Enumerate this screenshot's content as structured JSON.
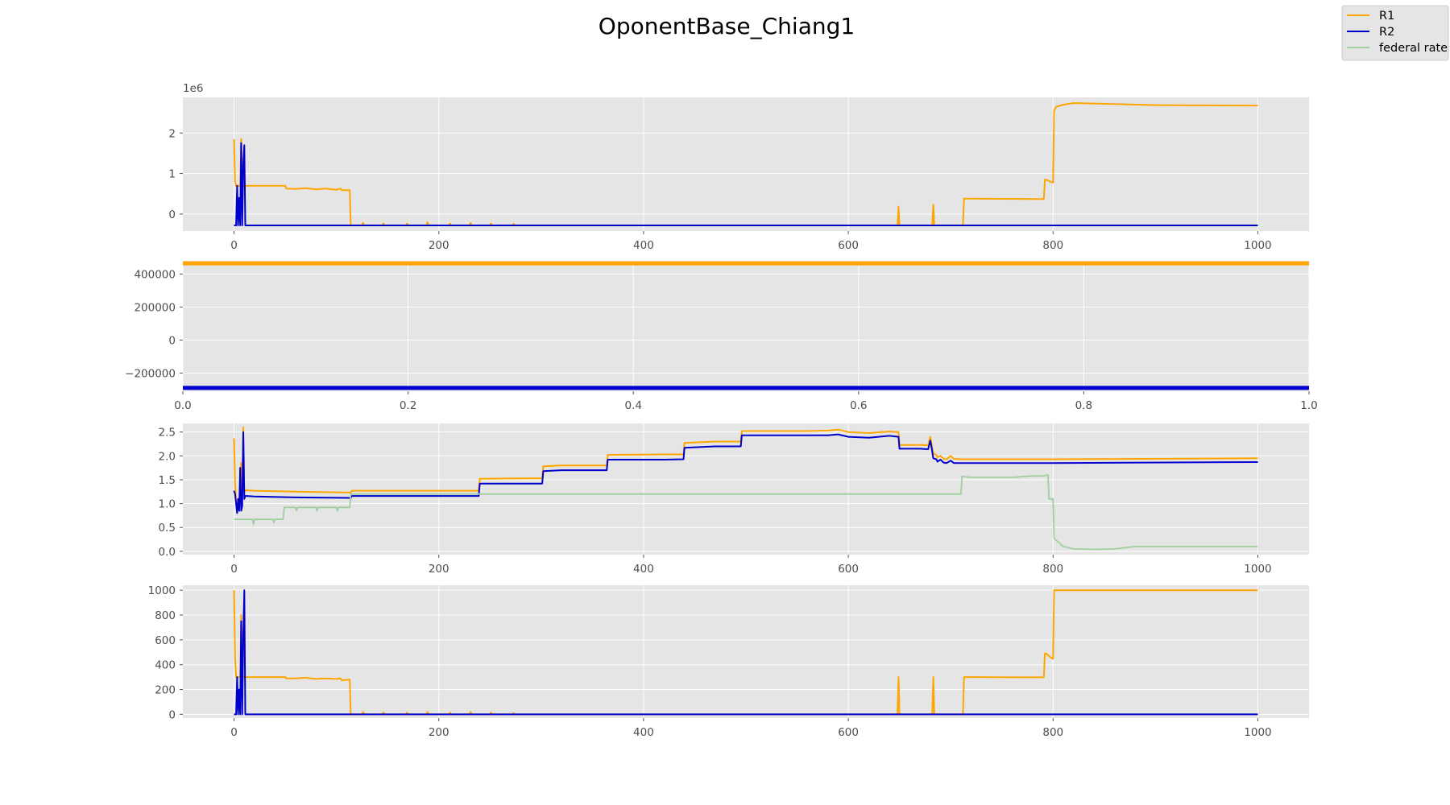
{
  "figure": {
    "title": "OponentBase_Chiang1",
    "background": "#ffffff",
    "plot_background": "#e5e5e5",
    "grid_color": "#ffffff"
  },
  "legend": {
    "placement": "top-right",
    "entries": [
      {
        "label": "R1",
        "color": "#ffa500"
      },
      {
        "label": "R2",
        "color": "#0000cd"
      },
      {
        "label": "federal rate",
        "color": "#9fcf9f"
      }
    ]
  },
  "chart_data": [
    {
      "type": "line",
      "title": "",
      "xlabel": "",
      "ylabel": "",
      "offset_text": "1e6",
      "xlim": [
        -50,
        1050
      ],
      "ylim": [
        -0.42,
        2.88
      ],
      "xticks": [
        0,
        200,
        400,
        600,
        800,
        1000
      ],
      "xtick_labels": [
        "0",
        "200",
        "400",
        "600",
        "800",
        "1000"
      ],
      "yticks": [
        0,
        1,
        2
      ],
      "ytick_labels": [
        "0",
        "1",
        "2"
      ],
      "grid": true,
      "series": [
        {
          "name": "R1",
          "color": "#ffa500",
          "x": [
            0,
            1,
            2,
            3,
            4,
            5,
            6,
            7,
            8,
            9,
            10,
            11,
            12,
            13,
            50,
            51,
            60,
            70,
            80,
            90,
            100,
            104,
            105,
            113,
            114,
            125,
            126,
            127,
            145,
            146,
            147,
            168,
            169,
            170,
            188,
            189,
            190,
            210,
            211,
            212,
            230,
            231,
            232,
            250,
            251,
            252,
            272,
            273,
            274,
            648,
            649,
            650,
            651,
            682,
            683,
            684,
            685,
            712,
            713,
            714,
            720,
            790,
            791,
            792,
            793,
            799,
            800,
            801,
            802,
            803,
            810,
            820,
            900,
            1000
          ],
          "y": [
            1.85,
            0.8,
            0.69,
            0.68,
            0.7,
            0.69,
            0.69,
            1.85,
            0.7,
            0.69,
            0.68,
            0.69,
            0.69,
            0.7,
            0.7,
            0.63,
            0.62,
            0.64,
            0.61,
            0.63,
            0.6,
            0.63,
            0.59,
            0.59,
            -0.28,
            -0.28,
            -0.22,
            -0.28,
            -0.28,
            -0.23,
            -0.28,
            -0.28,
            -0.23,
            -0.28,
            -0.28,
            -0.2,
            -0.28,
            -0.28,
            -0.23,
            -0.28,
            -0.28,
            -0.22,
            -0.28,
            -0.28,
            -0.23,
            -0.28,
            -0.28,
            -0.24,
            -0.28,
            -0.28,
            0.18,
            -0.28,
            -0.28,
            -0.28,
            0.23,
            -0.28,
            -0.28,
            -0.28,
            0.38,
            0.38,
            0.38,
            0.37,
            0.37,
            0.85,
            0.85,
            0.78,
            0.78,
            2.55,
            2.6,
            2.65,
            2.7,
            2.74,
            2.69,
            2.68
          ]
        },
        {
          "name": "R2",
          "color": "#0000cd",
          "x": [
            0,
            2,
            3,
            4,
            5,
            6,
            7,
            8,
            9,
            10,
            11,
            12,
            1000
          ],
          "y": [
            -0.28,
            -0.28,
            0.7,
            -0.28,
            0.4,
            -0.28,
            1.75,
            -0.28,
            1.25,
            1.7,
            -0.28,
            -0.28,
            -0.28
          ]
        }
      ]
    },
    {
      "type": "line",
      "title": "",
      "xlabel": "",
      "ylabel": "",
      "xlim": [
        0,
        1
      ],
      "ylim": [
        -310000,
        480000
      ],
      "xticks": [
        0,
        0.2,
        0.4,
        0.6,
        0.8,
        1.0
      ],
      "xtick_labels": [
        "0.0",
        "0.2",
        "0.4",
        "0.6",
        "0.8",
        "1.0"
      ],
      "yticks": [
        -200000,
        0,
        200000,
        400000
      ],
      "ytick_labels": [
        "−200000",
        "0",
        "200000",
        "400000"
      ],
      "grid": true,
      "series": [
        {
          "name": "R1",
          "color": "#ffa500",
          "x": [
            0,
            1
          ],
          "y": [
            465000,
            465000
          ]
        },
        {
          "name": "R2",
          "color": "#0000cd",
          "x": [
            0,
            1
          ],
          "y": [
            -290000,
            -290000
          ]
        }
      ]
    },
    {
      "type": "line",
      "title": "",
      "xlabel": "",
      "ylabel": "",
      "xlim": [
        -50,
        1050
      ],
      "ylim": [
        -0.07,
        2.68
      ],
      "xticks": [
        0,
        200,
        400,
        600,
        800,
        1000
      ],
      "xtick_labels": [
        "0",
        "200",
        "400",
        "600",
        "800",
        "1000"
      ],
      "yticks": [
        0.0,
        0.5,
        1.0,
        1.5,
        2.0,
        2.5
      ],
      "ytick_labels": [
        "0.0",
        "0.5",
        "1.0",
        "1.5",
        "2.0",
        "2.5"
      ],
      "grid": true,
      "series": [
        {
          "name": "R1",
          "color": "#ffa500",
          "x": [
            0,
            1,
            2,
            3,
            4,
            5,
            6,
            7,
            8,
            9,
            10,
            11,
            12,
            20,
            60,
            113,
            114,
            115,
            160,
            210,
            239,
            240,
            241,
            290,
            301,
            302,
            320,
            360,
            364,
            365,
            420,
            439,
            440,
            470,
            495,
            496,
            560,
            580,
            590,
            600,
            620,
            640,
            649,
            650,
            670,
            678,
            680,
            681,
            683,
            686,
            687,
            690,
            693,
            696,
            700,
            703,
            710,
            711,
            800,
            1000
          ],
          "y": [
            2.37,
            1.4,
            1.1,
            0.95,
            1.1,
            1.0,
            1.2,
            1.85,
            1.1,
            2.6,
            1.25,
            1.27,
            1.28,
            1.27,
            1.25,
            1.23,
            1.23,
            1.27,
            1.27,
            1.27,
            1.27,
            1.52,
            1.52,
            1.53,
            1.53,
            1.78,
            1.8,
            1.8,
            1.8,
            2.02,
            2.03,
            2.03,
            2.27,
            2.3,
            2.3,
            2.52,
            2.52,
            2.53,
            2.55,
            2.5,
            2.48,
            2.51,
            2.5,
            2.23,
            2.23,
            2.22,
            2.4,
            2.3,
            2.05,
            2.02,
            1.97,
            2.0,
            1.94,
            1.93,
            2.0,
            1.94,
            1.93,
            1.93,
            1.93,
            1.95
          ]
        },
        {
          "name": "R2",
          "color": "#0000cd",
          "x": [
            0,
            1,
            2,
            3,
            4,
            5,
            6,
            7,
            8,
            9,
            10,
            11,
            12,
            20,
            60,
            113,
            114,
            115,
            160,
            210,
            239,
            240,
            241,
            290,
            301,
            302,
            320,
            360,
            364,
            365,
            420,
            439,
            440,
            470,
            495,
            496,
            560,
            580,
            590,
            600,
            620,
            640,
            649,
            650,
            670,
            678,
            680,
            681,
            683,
            686,
            687,
            690,
            693,
            696,
            700,
            703,
            710,
            711,
            800,
            1000
          ],
          "y": [
            1.27,
            1.2,
            1.0,
            0.8,
            1.1,
            0.85,
            1.75,
            0.85,
            0.95,
            2.5,
            1.1,
            1.16,
            1.16,
            1.15,
            1.13,
            1.12,
            1.12,
            1.16,
            1.16,
            1.16,
            1.16,
            1.42,
            1.42,
            1.42,
            1.42,
            1.68,
            1.7,
            1.7,
            1.7,
            1.92,
            1.92,
            1.93,
            2.17,
            2.2,
            2.2,
            2.43,
            2.43,
            2.43,
            2.45,
            2.4,
            2.38,
            2.42,
            2.4,
            2.15,
            2.15,
            2.14,
            2.32,
            2.22,
            1.95,
            1.93,
            1.88,
            1.92,
            1.86,
            1.85,
            1.9,
            1.85,
            1.85,
            1.85,
            1.85,
            1.87
          ]
        },
        {
          "name": "federal rate",
          "color": "#9fcf9f",
          "x": [
            0,
            18,
            19,
            20,
            38,
            39,
            40,
            48,
            49,
            60,
            61,
            62,
            80,
            81,
            82,
            100,
            101,
            102,
            113,
            114,
            200,
            320,
            700,
            710,
            711,
            720,
            760,
            780,
            790,
            795,
            796,
            800,
            801,
            802,
            810,
            820,
            840,
            860,
            880,
            1000
          ],
          "y": [
            0.67,
            0.67,
            0.57,
            0.67,
            0.67,
            0.6,
            0.67,
            0.67,
            0.92,
            0.92,
            0.85,
            0.92,
            0.92,
            0.85,
            0.92,
            0.92,
            0.85,
            0.92,
            0.92,
            1.2,
            1.2,
            1.2,
            1.2,
            1.2,
            1.57,
            1.55,
            1.55,
            1.58,
            1.58,
            1.6,
            1.1,
            1.1,
            0.27,
            0.25,
            0.1,
            0.05,
            0.04,
            0.05,
            0.1,
            0.1
          ]
        }
      ]
    },
    {
      "type": "line",
      "title": "",
      "xlabel": "",
      "ylabel": "",
      "xlim": [
        -50,
        1050
      ],
      "ylim": [
        -30,
        1040
      ],
      "xticks": [
        0,
        200,
        400,
        600,
        800,
        1000
      ],
      "xtick_labels": [
        "0",
        "200",
        "400",
        "600",
        "800",
        "1000"
      ],
      "yticks": [
        0,
        200,
        400,
        600,
        800,
        1000
      ],
      "ytick_labels": [
        "0",
        "200",
        "400",
        "600",
        "800",
        "1000"
      ],
      "grid": true,
      "series": [
        {
          "name": "R1",
          "color": "#ffa500",
          "x": [
            0,
            1,
            2,
            3,
            4,
            5,
            6,
            7,
            8,
            9,
            10,
            11,
            12,
            13,
            50,
            51,
            60,
            70,
            80,
            90,
            100,
            104,
            105,
            113,
            114,
            125,
            126,
            127,
            145,
            146,
            147,
            168,
            169,
            170,
            188,
            189,
            190,
            210,
            211,
            212,
            230,
            231,
            232,
            250,
            251,
            252,
            272,
            273,
            274,
            648,
            649,
            650,
            651,
            682,
            683,
            684,
            685,
            712,
            713,
            714,
            720,
            790,
            791,
            792,
            793,
            799,
            800,
            801,
            802,
            803,
            1000
          ],
          "y": [
            1000,
            450,
            300,
            300,
            300,
            300,
            300,
            800,
            300,
            300,
            300,
            300,
            300,
            300,
            300,
            290,
            290,
            295,
            285,
            290,
            285,
            290,
            275,
            280,
            0,
            0,
            20,
            0,
            0,
            15,
            0,
            0,
            15,
            0,
            0,
            20,
            0,
            0,
            15,
            0,
            0,
            20,
            0,
            0,
            15,
            0,
            0,
            10,
            0,
            0,
            300,
            0,
            0,
            0,
            300,
            0,
            0,
            0,
            300,
            300,
            300,
            298,
            298,
            490,
            490,
            450,
            450,
            1000,
            1000,
            1000,
            1000
          ]
        },
        {
          "name": "R2",
          "color": "#0000cd",
          "x": [
            0,
            2,
            3,
            4,
            5,
            6,
            7,
            8,
            9,
            10,
            11,
            12,
            1000
          ],
          "y": [
            0,
            0,
            300,
            0,
            200,
            0,
            750,
            0,
            650,
            1000,
            0,
            0,
            0
          ]
        }
      ]
    }
  ]
}
